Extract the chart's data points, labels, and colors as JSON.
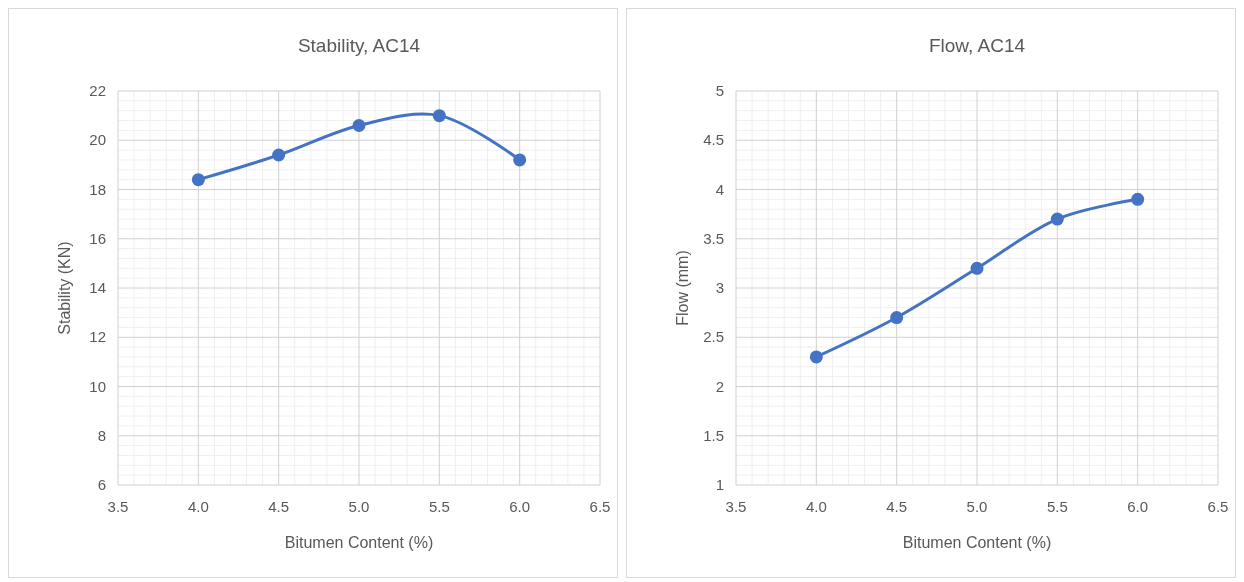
{
  "chart_data": [
    {
      "type": "line",
      "title": "Stability, AC14",
      "xlabel": "Bitumen Content (%)",
      "ylabel": "Stability (KN)",
      "x": [
        4.0,
        4.5,
        5.0,
        5.5,
        6.0
      ],
      "series": [
        {
          "color": "#4472c4",
          "values": [
            18.4,
            19.4,
            20.6,
            21.0,
            19.2
          ]
        }
      ],
      "xlim": [
        3.5,
        6.5
      ],
      "xticks": [
        {
          "value": 3.5,
          "label": "3.5"
        },
        {
          "value": 4,
          "label": "4.0"
        },
        {
          "value": 4.5,
          "label": "4.5"
        },
        {
          "value": 5,
          "label": "5.0"
        },
        {
          "value": 5.5,
          "label": "5.5"
        },
        {
          "value": 6,
          "label": "6.0"
        },
        {
          "value": 6.5,
          "label": "6.5"
        }
      ],
      "ylim": [
        6,
        22
      ],
      "yticks": [
        6,
        8,
        10,
        12,
        14,
        16,
        18,
        20,
        22
      ],
      "grid": true,
      "marker": "circle",
      "line_style": "solid"
    },
    {
      "type": "line",
      "title": "Flow, AC14",
      "xlabel": "Bitumen Content (%)",
      "ylabel": "Flow (mm)",
      "x": [
        4.0,
        4.5,
        5.0,
        5.5,
        6.0
      ],
      "series": [
        {
          "color": "#4472c4",
          "values": [
            2.3,
            2.7,
            3.2,
            3.7,
            3.9
          ]
        }
      ],
      "xlim": [
        3.5,
        6.5
      ],
      "xticks": [
        {
          "value": 3.5,
          "label": "3.5"
        },
        {
          "value": 4,
          "label": "4.0"
        },
        {
          "value": 4.5,
          "label": "4.5"
        },
        {
          "value": 5,
          "label": "5.0"
        },
        {
          "value": 5.5,
          "label": "5.5"
        },
        {
          "value": 6,
          "label": "6.0"
        },
        {
          "value": 6.5,
          "label": "6.5"
        }
      ],
      "ylim": [
        1,
        5
      ],
      "yticks": [
        1,
        1.5,
        2,
        2.5,
        3,
        3.5,
        4,
        4.5,
        5
      ],
      "grid": true,
      "marker": "circle",
      "line_style": "solid"
    }
  ]
}
